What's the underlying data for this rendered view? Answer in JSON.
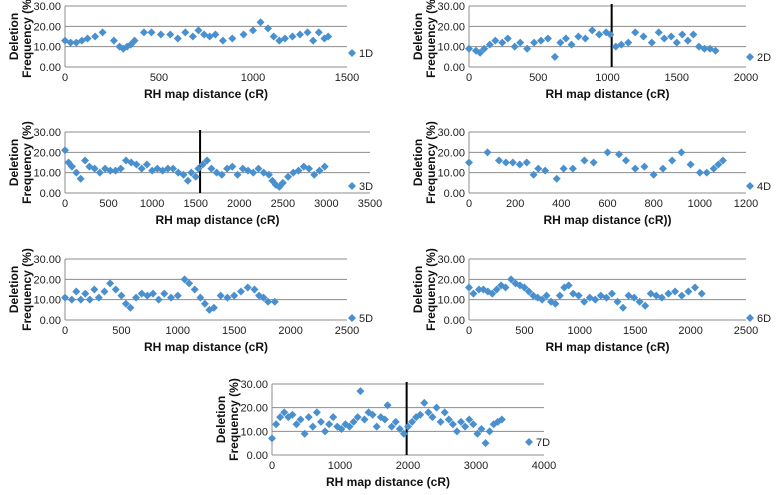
{
  "chart_data": [
    {
      "id": "1D",
      "type": "scatter",
      "legend": "1D",
      "xlabel": "RH map distance (cR)",
      "ylabel_lines": [
        "Deletion",
        "Frequency (%)"
      ],
      "xlim": [
        0,
        1500
      ],
      "xticks": [
        "0",
        "500",
        "1000",
        "1500"
      ],
      "ylim": [
        0,
        30
      ],
      "yticks": [
        "0.00",
        "10.00",
        "20.00",
        "30.00"
      ],
      "marker_x": null,
      "x": [
        0,
        30,
        60,
        90,
        120,
        160,
        200,
        260,
        290,
        310,
        330,
        350,
        370,
        420,
        460,
        510,
        560,
        600,
        640,
        680,
        710,
        740,
        770,
        800,
        840,
        890,
        950,
        1000,
        1040,
        1080,
        1110,
        1140,
        1170,
        1210,
        1250,
        1290,
        1320,
        1350,
        1380,
        1400
      ],
      "y": [
        13,
        12,
        12,
        13,
        14,
        15,
        17,
        13,
        10,
        9,
        10,
        11,
        13,
        17,
        17,
        16,
        16,
        14,
        17,
        15,
        18,
        16,
        15,
        16,
        13,
        14,
        16,
        18,
        22,
        19,
        15,
        13,
        14,
        15,
        16,
        17,
        13,
        17,
        14,
        15
      ]
    },
    {
      "id": "2D",
      "type": "scatter",
      "legend": "2D",
      "xlabel": "RH map distance (cR)",
      "ylabel_lines": [
        "Deletion",
        "Frequency (%)"
      ],
      "xlim": [
        0,
        2000
      ],
      "xticks": [
        "0",
        "500",
        "1000",
        "1500",
        "2000"
      ],
      "ylim": [
        0,
        30
      ],
      "yticks": [
        "0.00",
        "10.00",
        "20.00",
        "30.00"
      ],
      "marker_x": 1030,
      "x": [
        0,
        50,
        80,
        110,
        150,
        190,
        240,
        280,
        330,
        370,
        420,
        470,
        520,
        570,
        620,
        660,
        700,
        740,
        790,
        840,
        890,
        940,
        990,
        1020,
        1060,
        1100,
        1150,
        1200,
        1260,
        1320,
        1370,
        1410,
        1460,
        1500,
        1540,
        1580,
        1620,
        1660,
        1700,
        1740,
        1780
      ],
      "y": [
        9,
        8,
        7,
        9,
        11,
        13,
        12,
        14,
        10,
        12,
        9,
        12,
        13,
        14,
        5,
        12,
        14,
        11,
        15,
        14,
        18,
        16,
        17,
        16,
        10,
        11,
        12,
        17,
        15,
        12,
        17,
        14,
        15,
        12,
        16,
        13,
        16,
        10,
        9,
        9,
        8
      ]
    },
    {
      "id": "3D",
      "type": "scatter",
      "legend": "3D",
      "xlabel": "RH map distance (cR)",
      "ylabel_lines": [
        "Deletion",
        "Frequency (%)"
      ],
      "xlim": [
        0,
        3500
      ],
      "xticks": [
        "0",
        "500",
        "1000",
        "1500",
        "2000",
        "2500",
        "3000",
        "3500"
      ],
      "ylim": [
        0,
        30
      ],
      "yticks": [
        "0.00",
        "10.00",
        "20.00",
        "30.00"
      ],
      "marker_x": 1550,
      "x": [
        0,
        40,
        80,
        130,
        180,
        230,
        280,
        340,
        400,
        460,
        520,
        580,
        640,
        700,
        760,
        820,
        880,
        940,
        1000,
        1060,
        1120,
        1180,
        1240,
        1300,
        1360,
        1410,
        1450,
        1500,
        1530,
        1580,
        1630,
        1680,
        1740,
        1800,
        1860,
        1920,
        1980,
        2040,
        2100,
        2160,
        2220,
        2280,
        2340,
        2380,
        2420,
        2460,
        2500,
        2560,
        2620,
        2680,
        2740,
        2800,
        2860,
        2920,
        2980
      ],
      "y": [
        21,
        15,
        13,
        10,
        7,
        16,
        13,
        12,
        10,
        12,
        11,
        11,
        12,
        16,
        15,
        14,
        12,
        14,
        11,
        12,
        11,
        12,
        12,
        10,
        9,
        6,
        10,
        8,
        12,
        14,
        16,
        12,
        10,
        9,
        12,
        13,
        9,
        12,
        11,
        10,
        12,
        10,
        9,
        6,
        4,
        3,
        5,
        8,
        10,
        11,
        13,
        12,
        9,
        11,
        13
      ]
    },
    {
      "id": "4D",
      "type": "scatter",
      "legend": "4D",
      "xlabel": "RH map distance (cR))",
      "ylabel_lines": [
        "Deletion",
        "Frequency (%)"
      ],
      "xlim": [
        0,
        1200
      ],
      "xticks": [
        "0",
        "200",
        "400",
        "600",
        "800",
        "1000",
        "1200"
      ],
      "ylim": [
        0,
        30
      ],
      "yticks": [
        "0.00",
        "10.00",
        "20.00",
        "30.00"
      ],
      "marker_x": null,
      "x": [
        0,
        80,
        130,
        160,
        190,
        220,
        250,
        280,
        300,
        330,
        380,
        410,
        450,
        500,
        540,
        600,
        650,
        680,
        720,
        760,
        800,
        840,
        880,
        920,
        960,
        1000,
        1030,
        1060,
        1080,
        1100
      ],
      "y": [
        15,
        20,
        16,
        15,
        15,
        14,
        15,
        9,
        12,
        11,
        7,
        12,
        12,
        16,
        15,
        20,
        19,
        16,
        12,
        13,
        9,
        12,
        16,
        20,
        14,
        10,
        10,
        12,
        14,
        16
      ]
    },
    {
      "id": "5D",
      "type": "scatter",
      "legend": "5D",
      "xlabel": "RH map distance (cR)",
      "ylabel_lines": [
        "Deletion",
        "Frequency (%)"
      ],
      "xlim": [
        0,
        2500
      ],
      "xticks": [
        "0",
        "500",
        "1000",
        "1500",
        "2000",
        "2500"
      ],
      "ylim": [
        0,
        30
      ],
      "yticks": [
        "0.00",
        "10.00",
        "20.00",
        "30.00"
      ],
      "marker_x": null,
      "x": [
        0,
        60,
        100,
        140,
        180,
        220,
        260,
        300,
        350,
        400,
        450,
        500,
        540,
        580,
        630,
        680,
        730,
        780,
        830,
        880,
        940,
        1000,
        1060,
        1100,
        1150,
        1200,
        1240,
        1280,
        1320,
        1380,
        1440,
        1500,
        1560,
        1620,
        1680,
        1720,
        1760,
        1800,
        1860
      ],
      "y": [
        11,
        10,
        14,
        10,
        13,
        10,
        15,
        11,
        14,
        18,
        15,
        12,
        8,
        6,
        11,
        13,
        12,
        13,
        10,
        13,
        11,
        12,
        20,
        18,
        15,
        11,
        8,
        5,
        6,
        12,
        11,
        12,
        14,
        16,
        15,
        12,
        11,
        9,
        9
      ]
    },
    {
      "id": "6D",
      "type": "scatter",
      "legend": "6D",
      "xlabel": "RH map distance (cR)",
      "ylabel_lines": [
        "Deletion",
        "Frequency (%)"
      ],
      "xlim": [
        0,
        2500
      ],
      "xticks": [
        "0",
        "500",
        "1000",
        "1500",
        "2000",
        "2500"
      ],
      "ylim": [
        0,
        30
      ],
      "yticks": [
        "0.00",
        "10.00",
        "20.00",
        "30.00"
      ],
      "marker_x": null,
      "x": [
        0,
        40,
        90,
        130,
        170,
        210,
        250,
        290,
        330,
        380,
        420,
        460,
        500,
        540,
        580,
        620,
        660,
        700,
        740,
        780,
        820,
        860,
        900,
        940,
        990,
        1040,
        1090,
        1140,
        1190,
        1240,
        1290,
        1340,
        1390,
        1440,
        1490,
        1540,
        1590,
        1640,
        1690,
        1740,
        1800,
        1860,
        1920,
        1980,
        2040,
        2100
      ],
      "y": [
        16,
        13,
        15,
        15,
        14,
        13,
        15,
        17,
        16,
        20,
        18,
        17,
        16,
        14,
        12,
        11,
        10,
        12,
        9,
        8,
        12,
        16,
        17,
        13,
        12,
        9,
        11,
        10,
        12,
        11,
        13,
        9,
        6,
        12,
        11,
        9,
        7,
        13,
        12,
        11,
        13,
        14,
        12,
        14,
        16,
        13
      ]
    },
    {
      "id": "7D",
      "type": "scatter",
      "legend": "7D",
      "xlabel": "RH map distance (cR)",
      "ylabel_lines": [
        "Deletion",
        "Frequency (%)"
      ],
      "xlim": [
        0,
        4000
      ],
      "xticks": [
        "0",
        "1000",
        "2000",
        "3000",
        "4000"
      ],
      "ylim": [
        0,
        30
      ],
      "yticks": [
        "0.00",
        "10.00",
        "20.00",
        "30.00"
      ],
      "marker_x": 1980,
      "x": [
        0,
        60,
        120,
        180,
        240,
        300,
        360,
        420,
        480,
        540,
        600,
        660,
        720,
        780,
        840,
        900,
        960,
        1020,
        1080,
        1140,
        1200,
        1260,
        1300,
        1360,
        1420,
        1480,
        1540,
        1600,
        1660,
        1700,
        1760,
        1820,
        1880,
        1940,
        2000,
        2060,
        2120,
        2180,
        2240,
        2300,
        2360,
        2420,
        2480,
        2540,
        2600,
        2660,
        2720,
        2780,
        2840,
        2900,
        2960,
        3020,
        3080,
        3140,
        3200,
        3260,
        3320,
        3380
      ],
      "y": [
        7,
        13,
        16,
        18,
        16,
        17,
        13,
        15,
        9,
        16,
        12,
        18,
        14,
        10,
        13,
        16,
        12,
        11,
        13,
        12,
        14,
        16,
        27,
        15,
        18,
        17,
        12,
        16,
        15,
        21,
        12,
        14,
        11,
        9,
        12,
        14,
        16,
        17,
        22,
        18,
        16,
        20,
        14,
        18,
        15,
        13,
        10,
        14,
        12,
        15,
        13,
        9,
        11,
        5,
        10,
        13,
        14,
        15
      ]
    }
  ]
}
